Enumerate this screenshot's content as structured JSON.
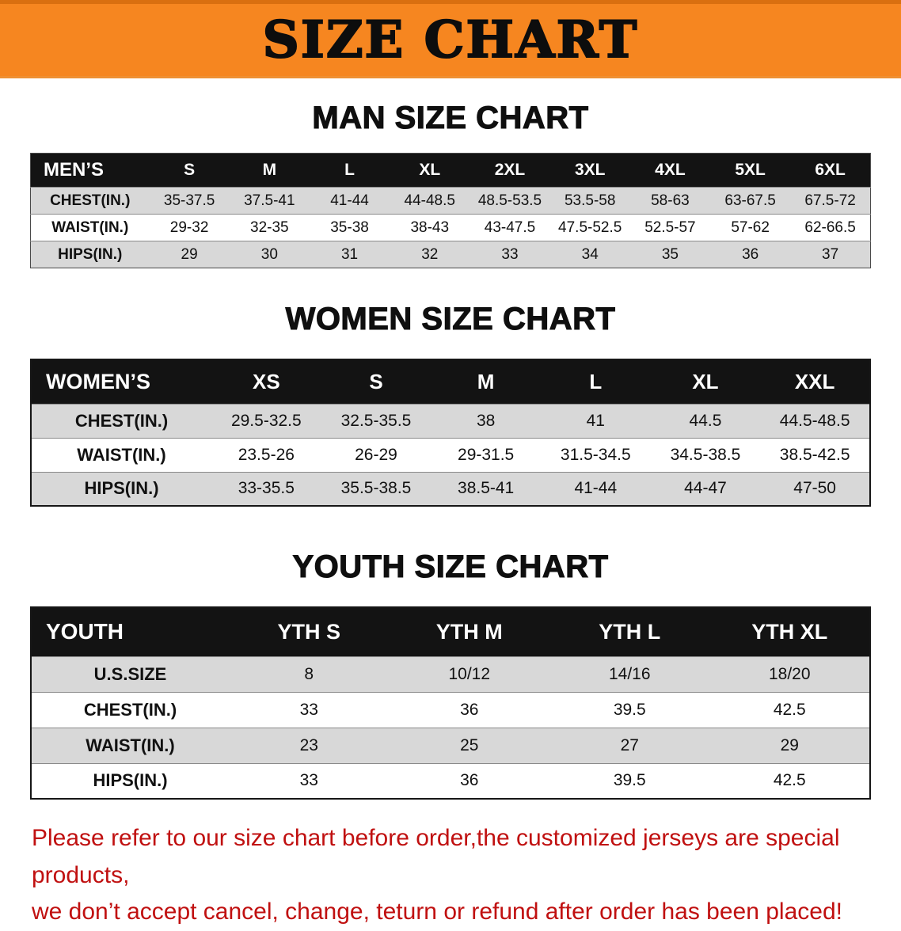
{
  "banner": {
    "title": "SIZE CHART",
    "bg_color": "#f68620"
  },
  "colors": {
    "header_row_bg": "#131313",
    "alt_row_bg": "#d8d8d8",
    "disclaimer_text": "#c01010"
  },
  "sections": [
    {
      "heading": "MAN SIZE CHART",
      "table": {
        "header": [
          "MEN’S",
          "S",
          "M",
          "L",
          "XL",
          "2XL",
          "3XL",
          "4XL",
          "5XL",
          "6XL"
        ],
        "rows": [
          {
            "label": "CHEST(IN.)",
            "values": [
              "35-37.5",
              "37.5-41",
              "41-44",
              "44-48.5",
              "48.5-53.5",
              "53.5-58",
              "58-63",
              "63-67.5",
              "67.5-72"
            ]
          },
          {
            "label": "WAIST(IN.)",
            "values": [
              "29-32",
              "32-35",
              "35-38",
              "38-43",
              "43-47.5",
              "47.5-52.5",
              "52.5-57",
              "57-62",
              "62-66.5"
            ]
          },
          {
            "label": "HIPS(IN.)",
            "values": [
              "29",
              "30",
              "31",
              "32",
              "33",
              "34",
              "35",
              "36",
              "37"
            ]
          }
        ]
      }
    },
    {
      "heading": "WOMEN SIZE CHART",
      "table": {
        "header": [
          "WOMEN’S",
          "XS",
          "S",
          "M",
          "L",
          "XL",
          "XXL"
        ],
        "rows": [
          {
            "label": "CHEST(IN.)",
            "values": [
              "29.5-32.5",
              "32.5-35.5",
              "38",
              "41",
              "44.5",
              "44.5-48.5"
            ]
          },
          {
            "label": "WAIST(IN.)",
            "values": [
              "23.5-26",
              "26-29",
              "29-31.5",
              "31.5-34.5",
              "34.5-38.5",
              "38.5-42.5"
            ]
          },
          {
            "label": "HIPS(IN.)",
            "values": [
              "33-35.5",
              "35.5-38.5",
              "38.5-41",
              "41-44",
              "44-47",
              "47-50"
            ]
          }
        ]
      }
    },
    {
      "heading": "YOUTH SIZE CHART",
      "table": {
        "header": [
          "YOUTH",
          "YTH S",
          "YTH M",
          "YTH L",
          "YTH XL"
        ],
        "rows": [
          {
            "label": "U.S.SIZE",
            "values": [
              "8",
              "10/12",
              "14/16",
              "18/20"
            ]
          },
          {
            "label": "CHEST(IN.)",
            "values": [
              "33",
              "36",
              "39.5",
              "42.5"
            ]
          },
          {
            "label": "WAIST(IN.)",
            "values": [
              "23",
              "25",
              "27",
              "29"
            ]
          },
          {
            "label": "HIPS(IN.)",
            "values": [
              "33",
              "36",
              "39.5",
              "42.5"
            ]
          }
        ]
      }
    }
  ],
  "footer": {
    "line1": "Please refer to our size chart before order,the customized jerseys are special products,",
    "line2": "we don’t accept cancel, change, teturn or refund after order has been placed!"
  }
}
